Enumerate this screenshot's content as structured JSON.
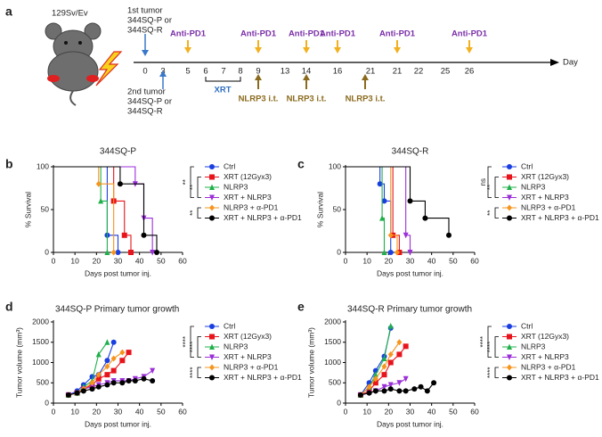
{
  "timeline": {
    "label": "a",
    "strain": "129Sv/Ev",
    "first_tumor": [
      "1st tumor",
      "344SQ-P or",
      "344SQ-R"
    ],
    "second_tumor": [
      "2nd tumor",
      "344SQ-P or",
      "344SQ-R"
    ],
    "days": [
      "0",
      "3",
      "5",
      "6",
      "7",
      "8",
      "9",
      "13",
      "14",
      "16",
      "21",
      "21",
      "22",
      "25",
      "26"
    ],
    "day_label": "Day",
    "anti_pd1_labels": [
      "Anti-PD1",
      "Anti-PD1",
      "Anti-PD1",
      "Anti-PD1",
      "Anti-PD1",
      "Anti-PD1"
    ],
    "xrt_label": "XRT",
    "nlrp3_labels": [
      "NLRP3 i.t.",
      "NLRP3 i.t.",
      "NLRP3 i.t."
    ]
  },
  "chart_data": [
    {
      "type": "step",
      "label": "b",
      "title": "344SQ-P",
      "xlabel": "Days post tumor inj.",
      "ylabel": "% Survival",
      "xlim": [
        0,
        60
      ],
      "xticks": [
        0,
        10,
        20,
        30,
        40,
        50,
        60
      ],
      "ylim": [
        0,
        100
      ],
      "yticks": [
        0,
        50,
        100
      ],
      "annotations": [
        "**",
        "**",
        "**"
      ],
      "series": [
        {
          "name": "Ctrl",
          "color": "#1a3fe0",
          "marker": "circle",
          "x": [
            0,
            25,
            30
          ],
          "values": [
            100,
            20,
            0
          ]
        },
        {
          "name": "XRT (12Gyx3)",
          "color": "#e8141c",
          "marker": "square",
          "x": [
            0,
            28,
            33,
            36
          ],
          "values": [
            100,
            60,
            20,
            0
          ]
        },
        {
          "name": "NLRP3",
          "color": "#1fb04a",
          "marker": "triangle-up",
          "x": [
            0,
            22,
            25
          ],
          "values": [
            100,
            60,
            0
          ]
        },
        {
          "name": "XRT + NLRP3",
          "color": "#9b2fd8",
          "marker": "triangle-down",
          "x": [
            0,
            38,
            42,
            46
          ],
          "values": [
            100,
            80,
            40,
            0
          ]
        },
        {
          "name": "NLRP3 + α-PD1",
          "color": "#f7941d",
          "marker": "diamond",
          "x": [
            0,
            21,
            28
          ],
          "values": [
            100,
            80,
            0
          ]
        },
        {
          "name": "XRT + NLRP3 + α-PD1",
          "color": "#000000",
          "marker": "circle",
          "x": [
            0,
            31,
            42,
            48
          ],
          "values": [
            100,
            80,
            20,
            0
          ]
        }
      ]
    },
    {
      "type": "step",
      "label": "c",
      "title": "344SQ-R",
      "xlabel": "Days post tumor inj.",
      "ylabel": "% Survival",
      "xlim": [
        0,
        60
      ],
      "xticks": [
        0,
        10,
        20,
        30,
        40,
        50,
        60
      ],
      "ylim": [
        0,
        100
      ],
      "yticks": [
        0,
        50,
        100
      ],
      "annotations": [
        "ns",
        "**",
        "**"
      ],
      "series": [
        {
          "name": "Ctrl",
          "color": "#1a3fe0",
          "marker": "circle",
          "x": [
            0,
            16,
            18,
            21
          ],
          "values": [
            100,
            80,
            60,
            0
          ]
        },
        {
          "name": "XRT (12Gyx3)",
          "color": "#e8141c",
          "marker": "square",
          "x": [
            0,
            22,
            25
          ],
          "values": [
            100,
            20,
            0
          ]
        },
        {
          "name": "NLRP3",
          "color": "#1fb04a",
          "marker": "triangle-up",
          "x": [
            0,
            17,
            18
          ],
          "values": [
            100,
            40,
            0
          ]
        },
        {
          "name": "XRT + NLRP3",
          "color": "#9b2fd8",
          "marker": "triangle-down",
          "x": [
            0,
            28,
            30
          ],
          "values": [
            100,
            20,
            0
          ]
        },
        {
          "name": "NLRP3 + α-PD1",
          "color": "#f7941d",
          "marker": "diamond",
          "x": [
            0,
            21,
            24
          ],
          "values": [
            100,
            20,
            0
          ]
        },
        {
          "name": "XRT + NLRP3 + α-PD1",
          "color": "#000000",
          "marker": "circle",
          "x": [
            0,
            30,
            37,
            48
          ],
          "values": [
            100,
            60,
            40,
            20
          ]
        }
      ]
    },
    {
      "type": "line",
      "label": "d",
      "title": "344SQ-P Primary tumor growth",
      "xlabel": "Days post tumor inj.",
      "ylabel": "Tumor volume (mm³)",
      "xlim": [
        0,
        60
      ],
      "xticks": [
        0,
        10,
        20,
        30,
        40,
        50,
        60
      ],
      "ylim": [
        0,
        2000
      ],
      "yticks": [
        0,
        500,
        1000,
        1500,
        2000
      ],
      "annotations": [
        "****",
        "****",
        "****"
      ],
      "series": [
        {
          "name": "Ctrl",
          "color": "#1a3fe0",
          "marker": "circle",
          "x": [
            7,
            11,
            14,
            18,
            21,
            25,
            28
          ],
          "values": [
            200,
            300,
            450,
            650,
            700,
            1050,
            1500
          ]
        },
        {
          "name": "XRT (12Gyx3)",
          "color": "#e8141c",
          "marker": "square",
          "x": [
            7,
            11,
            14,
            18,
            21,
            25,
            28,
            32,
            35
          ],
          "values": [
            200,
            250,
            350,
            450,
            600,
            700,
            800,
            1050,
            1250
          ]
        },
        {
          "name": "NLRP3",
          "color": "#1fb04a",
          "marker": "triangle-up",
          "x": [
            7,
            11,
            14,
            18,
            21,
            25
          ],
          "values": [
            200,
            250,
            400,
            550,
            1200,
            1500
          ]
        },
        {
          "name": "XRT + NLRP3",
          "color": "#9b2fd8",
          "marker": "triangle-down",
          "x": [
            7,
            11,
            14,
            18,
            21,
            25,
            28,
            32,
            35,
            38,
            42,
            46
          ],
          "values": [
            200,
            250,
            350,
            400,
            450,
            500,
            550,
            550,
            550,
            600,
            650,
            800
          ]
        },
        {
          "name": "NLRP3 + α-PD1",
          "color": "#f7941d",
          "marker": "diamond",
          "x": [
            7,
            11,
            14,
            18,
            21,
            25,
            28,
            32
          ],
          "values": [
            200,
            250,
            350,
            500,
            700,
            900,
            1100,
            1250
          ]
        },
        {
          "name": "XRT + NLRP3 + α-PD1",
          "color": "#000000",
          "marker": "circle",
          "x": [
            7,
            11,
            14,
            18,
            21,
            25,
            28,
            32,
            35,
            38,
            42,
            46
          ],
          "values": [
            200,
            250,
            300,
            350,
            400,
            450,
            500,
            500,
            550,
            550,
            600,
            550
          ]
        }
      ]
    },
    {
      "type": "line",
      "label": "e",
      "title": "344SQ-R Primary tumor growth",
      "xlabel": "Days post tumor inj.",
      "ylabel": "Tumor volume (mm³)",
      "xlim": [
        0,
        60
      ],
      "xticks": [
        0,
        10,
        20,
        30,
        40,
        50,
        60
      ],
      "ylim": [
        0,
        2000
      ],
      "yticks": [
        0,
        500,
        1000,
        1500,
        2000
      ],
      "annotations": [
        "****",
        "****",
        "****"
      ],
      "series": [
        {
          "name": "Ctrl",
          "color": "#1a3fe0",
          "marker": "circle",
          "x": [
            7,
            11,
            14,
            18,
            21
          ],
          "values": [
            200,
            500,
            800,
            1150,
            1850
          ]
        },
        {
          "name": "XRT (12Gyx3)",
          "color": "#e8141c",
          "marker": "square",
          "x": [
            7,
            11,
            14,
            18,
            21,
            25,
            28
          ],
          "values": [
            200,
            300,
            500,
            700,
            1000,
            1200,
            1400
          ]
        },
        {
          "name": "NLRP3",
          "color": "#1fb04a",
          "marker": "triangle-up",
          "x": [
            7,
            11,
            14,
            18,
            21
          ],
          "values": [
            200,
            400,
            700,
            1100,
            1900
          ]
        },
        {
          "name": "XRT + NLRP3",
          "color": "#9b2fd8",
          "marker": "triangle-down",
          "x": [
            7,
            11,
            14,
            18,
            21,
            25,
            28
          ],
          "values": [
            200,
            250,
            300,
            400,
            450,
            500,
            600
          ]
        },
        {
          "name": "NLRP3 + α-PD1",
          "color": "#f7941d",
          "marker": "diamond",
          "x": [
            7,
            11,
            14,
            18,
            21,
            25
          ],
          "values": [
            200,
            400,
            600,
            900,
            1200,
            1500
          ]
        },
        {
          "name": "XRT + NLRP3 + α-PD1",
          "color": "#000000",
          "marker": "circle",
          "x": [
            7,
            11,
            14,
            18,
            21,
            25,
            28,
            32,
            35,
            38,
            41
          ],
          "values": [
            200,
            250,
            300,
            300,
            350,
            300,
            300,
            350,
            400,
            300,
            500
          ]
        }
      ]
    }
  ]
}
